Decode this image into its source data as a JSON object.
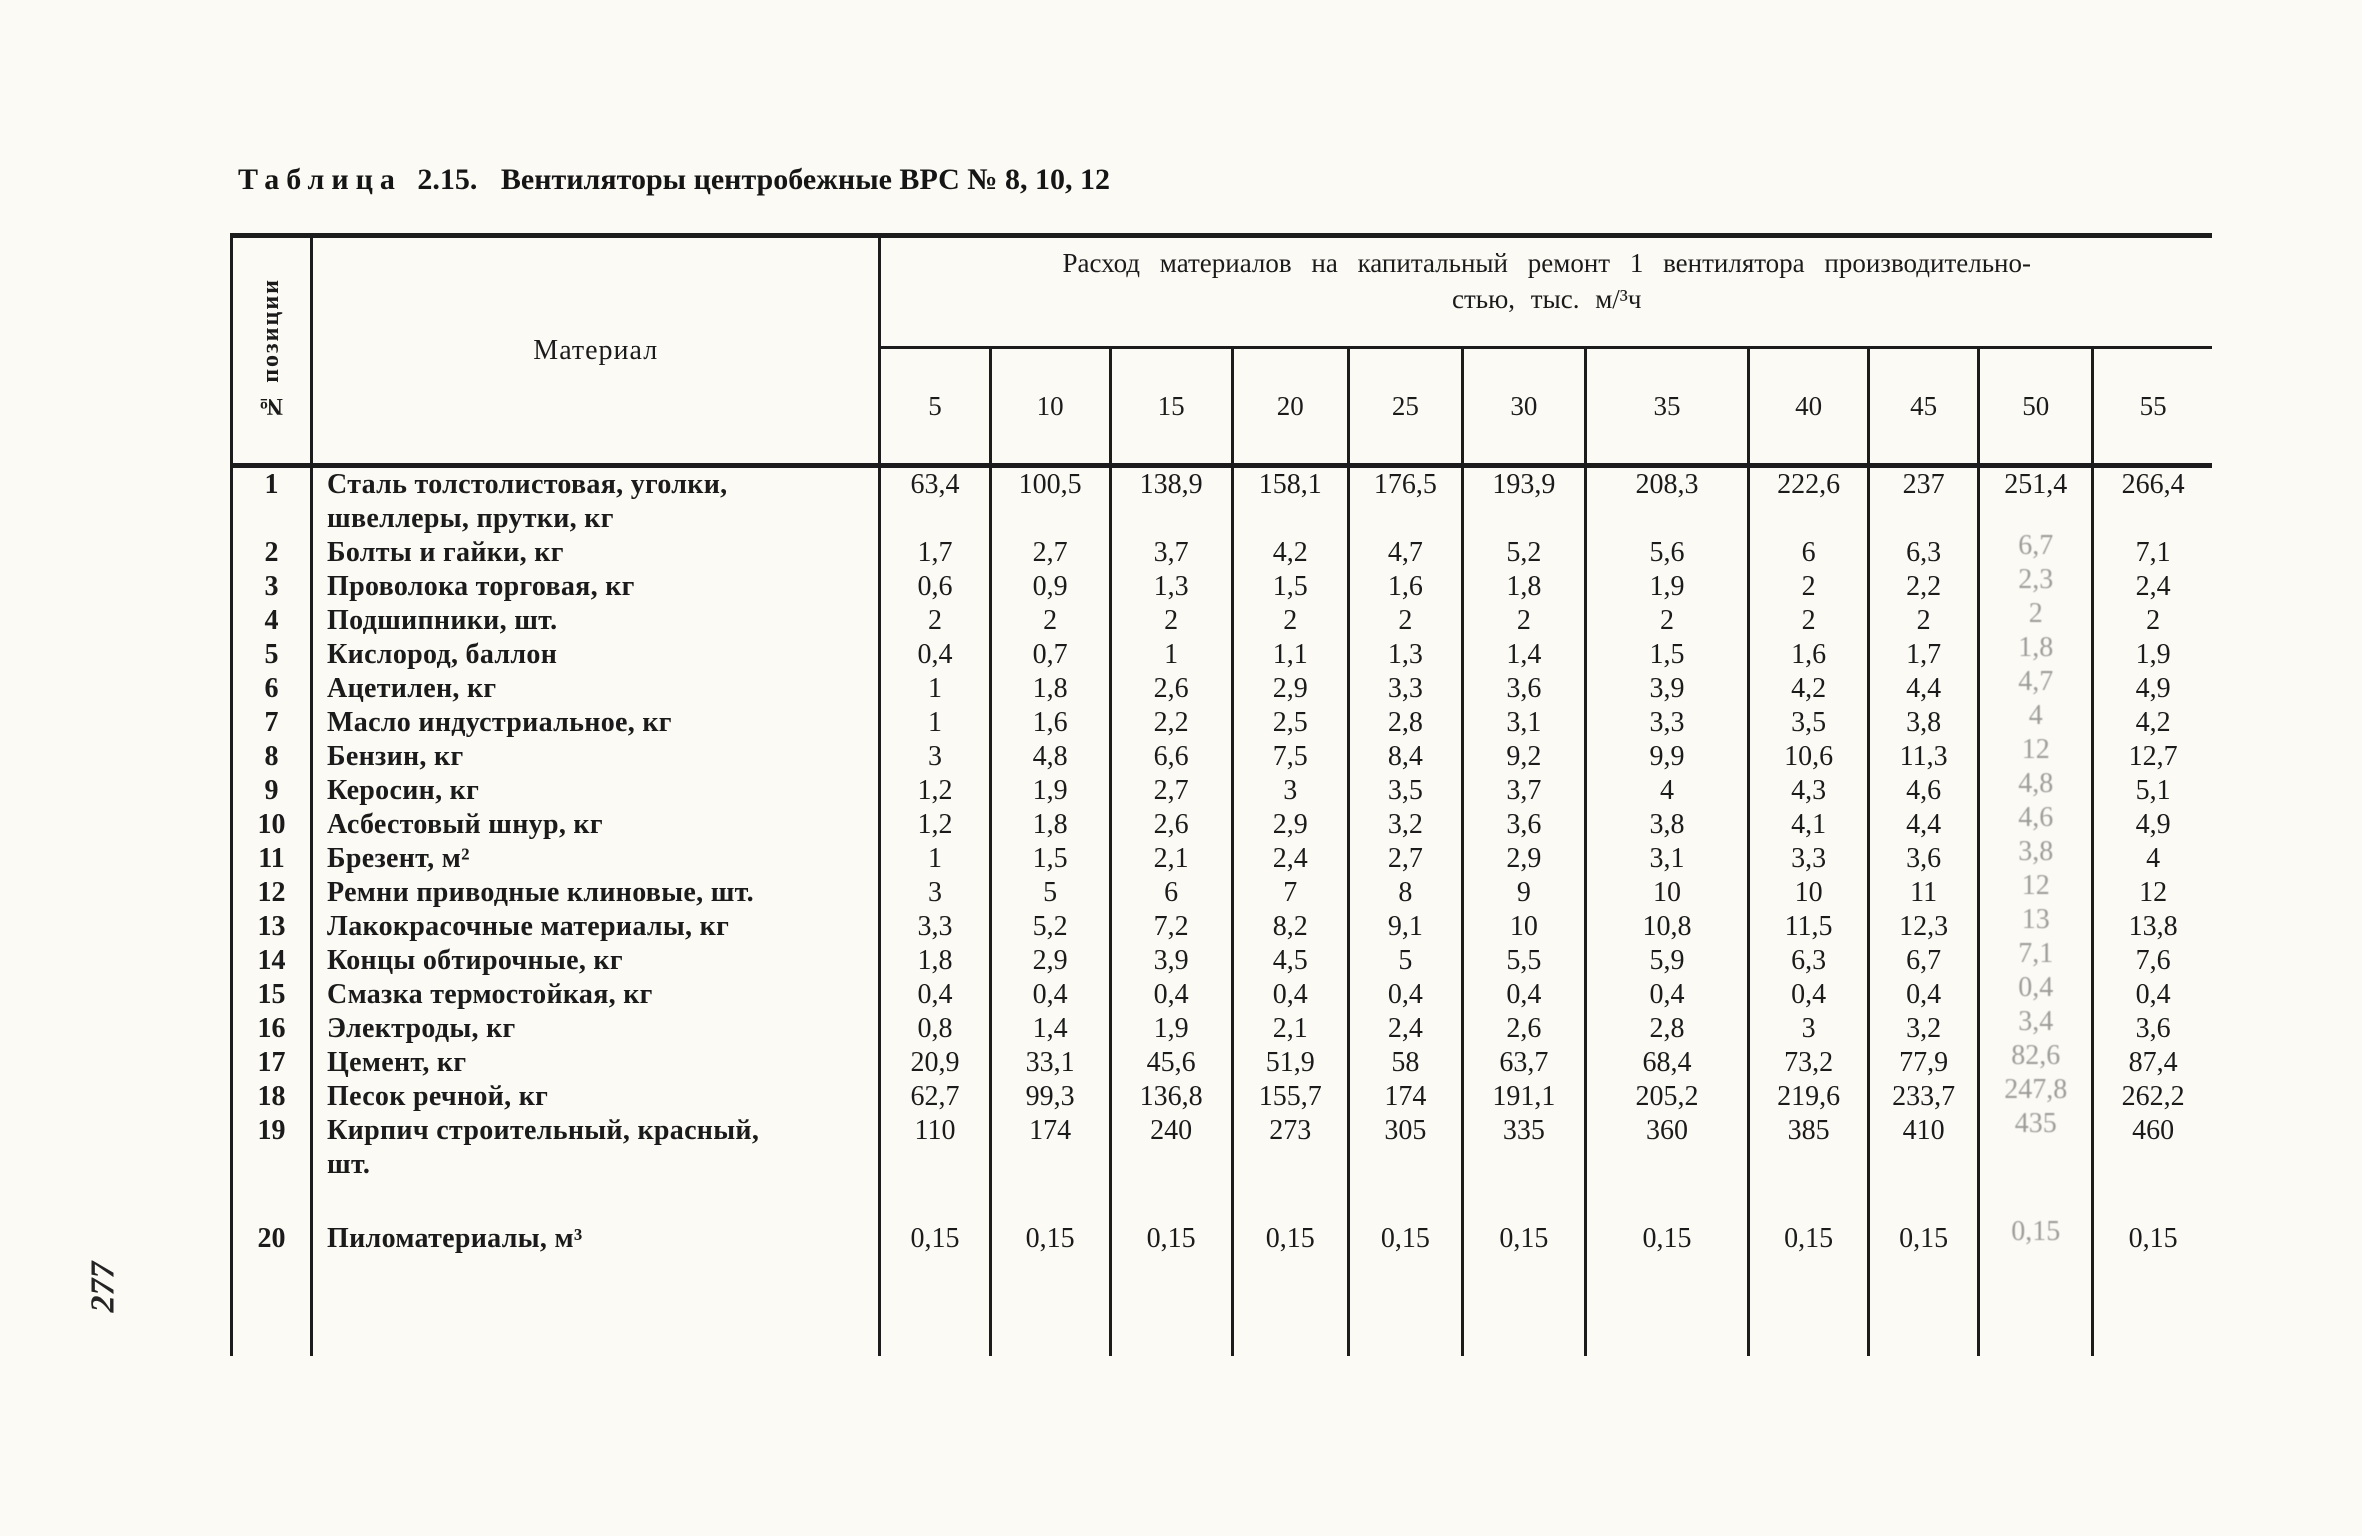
{
  "page": {
    "number": "277",
    "title": {
      "spaced_word": "Таблица",
      "number": "2.15.",
      "text": "Вентиляторы центробежные ВРС № 8, 10, 12"
    }
  },
  "table": {
    "position_col_header": "№ позиции",
    "material_col_header": "Материал",
    "span_header_line1": "Расход материалов на капитальный ремонт 1 вентилятора производительно-",
    "span_header_line2": "стью, тыс. м/³ч",
    "capacities": [
      "5",
      "10",
      "15",
      "20",
      "25",
      "30",
      "35",
      "40",
      "45",
      "50",
      "55"
    ],
    "rows": [
      {
        "num": "1",
        "material": "Сталь толстолистовая,  уголки,\nшвеллеры, прутки, кг",
        "values": [
          "63,4",
          "100,5",
          "138,9",
          "158,1",
          "176,5",
          "193,9",
          "208,3",
          "222,6",
          "237",
          "251,4",
          "266,4"
        ]
      },
      {
        "num": "2",
        "material": "Болты и гайки, кг",
        "values": [
          "1,7",
          "2,7",
          "3,7",
          "4,2",
          "4,7",
          "5,2",
          "5,6",
          "6",
          "6,3",
          "6,7",
          "7,1"
        ]
      },
      {
        "num": "3",
        "material": "Проволока торговая, кг",
        "values": [
          "0,6",
          "0,9",
          "1,3",
          "1,5",
          "1,6",
          "1,8",
          "1,9",
          "2",
          "2,2",
          "2,3",
          "2,4"
        ]
      },
      {
        "num": "4",
        "material": "Подшипники, шт.",
        "values": [
          "2",
          "2",
          "2",
          "2",
          "2",
          "2",
          "2",
          "2",
          "2",
          "2",
          "2"
        ]
      },
      {
        "num": "5",
        "material": "Кислород, баллон",
        "values": [
          "0,4",
          "0,7",
          "1",
          "1,1",
          "1,3",
          "1,4",
          "1,5",
          "1,6",
          "1,7",
          "1,8",
          "1,9"
        ]
      },
      {
        "num": "6",
        "material": "Ацетилен, кг",
        "values": [
          "1",
          "1,8",
          "2,6",
          "2,9",
          "3,3",
          "3,6",
          "3,9",
          "4,2",
          "4,4",
          "4,7",
          "4,9"
        ]
      },
      {
        "num": "7",
        "material": "Масло индустриальное, кг",
        "values": [
          "1",
          "1,6",
          "2,2",
          "2,5",
          "2,8",
          "3,1",
          "3,3",
          "3,5",
          "3,8",
          "4",
          "4,2"
        ]
      },
      {
        "num": "8",
        "material": "Бензин, кг",
        "values": [
          "3",
          "4,8",
          "6,6",
          "7,5",
          "8,4",
          "9,2",
          "9,9",
          "10,6",
          "11,3",
          "12",
          "12,7"
        ]
      },
      {
        "num": "9",
        "material": "Керосин, кг",
        "values": [
          "1,2",
          "1,9",
          "2,7",
          "3",
          "3,5",
          "3,7",
          "4",
          "4,3",
          "4,6",
          "4,8",
          "5,1"
        ]
      },
      {
        "num": "10",
        "material": "Асбестовый шнур, кг",
        "values": [
          "1,2",
          "1,8",
          "2,6",
          "2,9",
          "3,2",
          "3,6",
          "3,8",
          "4,1",
          "4,4",
          "4,6",
          "4,9"
        ]
      },
      {
        "num": "11",
        "material": "Брезент, м²",
        "values": [
          "1",
          "1,5",
          "2,1",
          "2,4",
          "2,7",
          "2,9",
          "3,1",
          "3,3",
          "3,6",
          "3,8",
          "4"
        ]
      },
      {
        "num": "12",
        "material": "Ремни приводные клиновые, шт.",
        "values": [
          "3",
          "5",
          "6",
          "7",
          "8",
          "9",
          "10",
          "10",
          "11",
          "12",
          "12"
        ]
      },
      {
        "num": "13",
        "material": "Лакокрасочные материалы, кг",
        "values": [
          "3,3",
          "5,2",
          "7,2",
          "8,2",
          "9,1",
          "10",
          "10,8",
          "11,5",
          "12,3",
          "13",
          "13,8"
        ]
      },
      {
        "num": "14",
        "material": "Концы обтирочные, кг",
        "values": [
          "1,8",
          "2,9",
          "3,9",
          "4,5",
          "5",
          "5,5",
          "5,9",
          "6,3",
          "6,7",
          "7,1",
          "7,6"
        ]
      },
      {
        "num": "15",
        "material": "Смазка термостойкая, кг",
        "values": [
          "0,4",
          "0,4",
          "0,4",
          "0,4",
          "0,4",
          "0,4",
          "0,4",
          "0,4",
          "0,4",
          "0,4",
          "0,4"
        ]
      },
      {
        "num": "16",
        "material": "Электроды, кг",
        "values": [
          "0,8",
          "1,4",
          "1,9",
          "2,1",
          "2,4",
          "2,6",
          "2,8",
          "3",
          "3,2",
          "3,4",
          "3,6"
        ]
      },
      {
        "num": "17",
        "material": "Цемент, кг",
        "values": [
          "20,9",
          "33,1",
          "45,6",
          "51,9",
          "58",
          "63,7",
          "68,4",
          "73,2",
          "77,9",
          "82,6",
          "87,4"
        ]
      },
      {
        "num": "18",
        "material": "Песок речной, кг",
        "values": [
          "62,7",
          "99,3",
          "136,8",
          "155,7",
          "174",
          "191,1",
          "205,2",
          "219,6",
          "233,7",
          "247,8",
          "262,2"
        ]
      },
      {
        "num": "19",
        "material": "Кирпич строительный, красный,\nшт.",
        "values": [
          "110",
          "174",
          "240",
          "273",
          "305",
          "335",
          "360",
          "385",
          "410",
          "435",
          "460"
        ]
      },
      {
        "num": "20",
        "material": "Пиломатериалы, м³",
        "values": [
          "0,15",
          "0,15",
          "0,15",
          "0,15",
          "0,15",
          "0,15",
          "0,15",
          "0,15",
          "0,15",
          "0,15",
          "0,15"
        ]
      }
    ]
  }
}
